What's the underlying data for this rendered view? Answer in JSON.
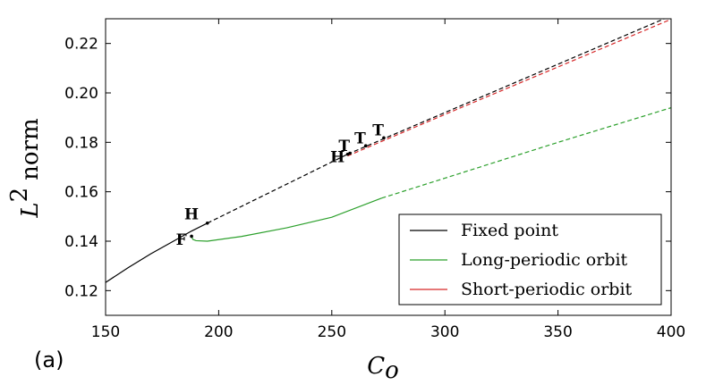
{
  "chart_data": {
    "type": "line",
    "panel_label": "(a)",
    "xlabel": "C",
    "xlabel_sub": "o",
    "ylabel_main": "L",
    "ylabel_sup": "2",
    "ylabel_rest": "norm",
    "xlim": [
      150,
      400
    ],
    "ylim": [
      0.11,
      0.23
    ],
    "xticks": [
      150,
      200,
      250,
      300,
      350,
      400
    ],
    "xtick_labels": [
      "150",
      "200",
      "250",
      "300",
      "350",
      "400"
    ],
    "yticks": [
      0.12,
      0.14,
      0.16,
      0.18,
      0.2,
      0.22
    ],
    "ytick_labels": [
      "0.12",
      "0.14",
      "0.16",
      "0.18",
      "0.20",
      "0.22"
    ],
    "legend_position": "bottom-right",
    "series": [
      {
        "name": "Fixed point",
        "color": "#000000",
        "segments": [
          {
            "style": "solid",
            "points": [
              [
                150,
                0.1233
              ],
              [
                160,
                0.1293
              ],
              [
                170,
                0.1349
              ],
              [
                180,
                0.14
              ],
              [
                188,
                0.1441
              ],
              [
                195,
                0.1473
              ]
            ]
          },
          {
            "style": "dashed",
            "points": [
              [
                195,
                0.1473
              ],
              [
                257,
                0.1752
              ]
            ]
          },
          {
            "style": "dashed",
            "points": [
              [
                257,
                0.1752
              ],
              [
                400,
                0.2312
              ]
            ]
          }
        ]
      },
      {
        "name": "Long-periodic orbit",
        "color": "#2ca02c",
        "segments": [
          {
            "style": "solid",
            "points": [
              [
                188,
                0.142
              ],
              [
                188.6,
                0.1407
              ],
              [
                190,
                0.1402
              ],
              [
                195,
                0.14
              ],
              [
                210,
                0.1419
              ],
              [
                230,
                0.1454
              ],
              [
                250,
                0.1497
              ],
              [
                272,
                0.1574
              ]
            ]
          },
          {
            "style": "dashed",
            "points": [
              [
                272,
                0.1574
              ],
              [
                300,
                0.1655
              ],
              [
                350,
                0.18
              ],
              [
                400,
                0.194
              ]
            ]
          }
        ]
      },
      {
        "name": "Short-periodic orbit",
        "color": "#d62728",
        "segments": [
          {
            "style": "dashed",
            "points": [
              [
                257,
                0.1745
              ],
              [
                300,
                0.1913
              ],
              [
                350,
                0.2105
              ],
              [
                400,
                0.2298
              ]
            ]
          }
        ]
      }
    ],
    "annotations": [
      {
        "label": "H",
        "point": [
          195,
          0.1473
        ],
        "text_at": [
          188,
          0.1488
        ]
      },
      {
        "label": "F",
        "point": [
          188,
          0.142
        ],
        "text_at": [
          183.5,
          0.1385
        ]
      },
      {
        "label": "H",
        "point": [
          257,
          0.1752
        ],
        "text_at": [
          252.5,
          0.172
        ]
      },
      {
        "label": "T",
        "point": [
          258,
          0.1756
        ],
        "text_at": [
          255.5,
          0.1765
        ]
      },
      {
        "label": "T",
        "point": [
          265,
          0.1786
        ],
        "text_at": [
          262.5,
          0.1795
        ]
      },
      {
        "label": "T",
        "point": [
          273,
          0.1818
        ],
        "text_at": [
          270.5,
          0.1828
        ]
      }
    ]
  }
}
